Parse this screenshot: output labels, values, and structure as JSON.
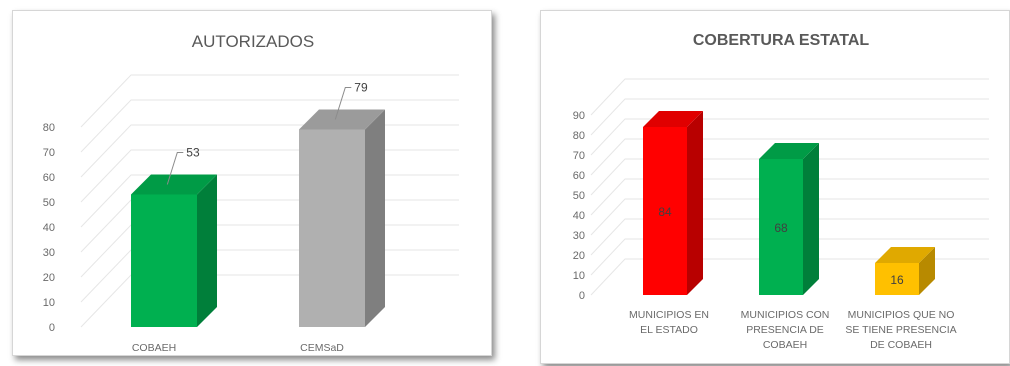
{
  "chart_data": [
    {
      "type": "bar",
      "title": "AUTORIZADOS",
      "categories": [
        [
          "COBAEH"
        ],
        [
          "CEMSaD"
        ]
      ],
      "values": [
        53,
        79
      ],
      "colors": [
        "#00b050",
        "#b0b0b0"
      ],
      "ylim": [
        0,
        80
      ],
      "yticks": [
        "0",
        "10",
        "20",
        "30",
        "40",
        "50",
        "60",
        "70",
        "80"
      ],
      "data_labels": [
        "53",
        "79"
      ],
      "grid": true,
      "legend": "none",
      "style": "3d-column"
    },
    {
      "type": "bar",
      "title": "COBERTURA ESTATAL",
      "categories": [
        [
          "MUNICIPIOS EN",
          "EL ESTADO"
        ],
        [
          "MUNICIPIOS CON",
          "PRESENCIA DE",
          "COBAEH"
        ],
        [
          "MUNICIPIOS QUE NO",
          "SE TIENE PRESENCIA",
          "DE COBAEH"
        ]
      ],
      "values": [
        84,
        68,
        16
      ],
      "colors": [
        "#ff0000",
        "#00b050",
        "#ffc000"
      ],
      "ylim": [
        0,
        90
      ],
      "yticks": [
        "0",
        "10",
        "20",
        "30",
        "40",
        "50",
        "60",
        "70",
        "80",
        "90"
      ],
      "data_labels": [
        "84",
        "68",
        "16"
      ],
      "grid": true,
      "legend": "none",
      "style": "3d-column"
    }
  ]
}
